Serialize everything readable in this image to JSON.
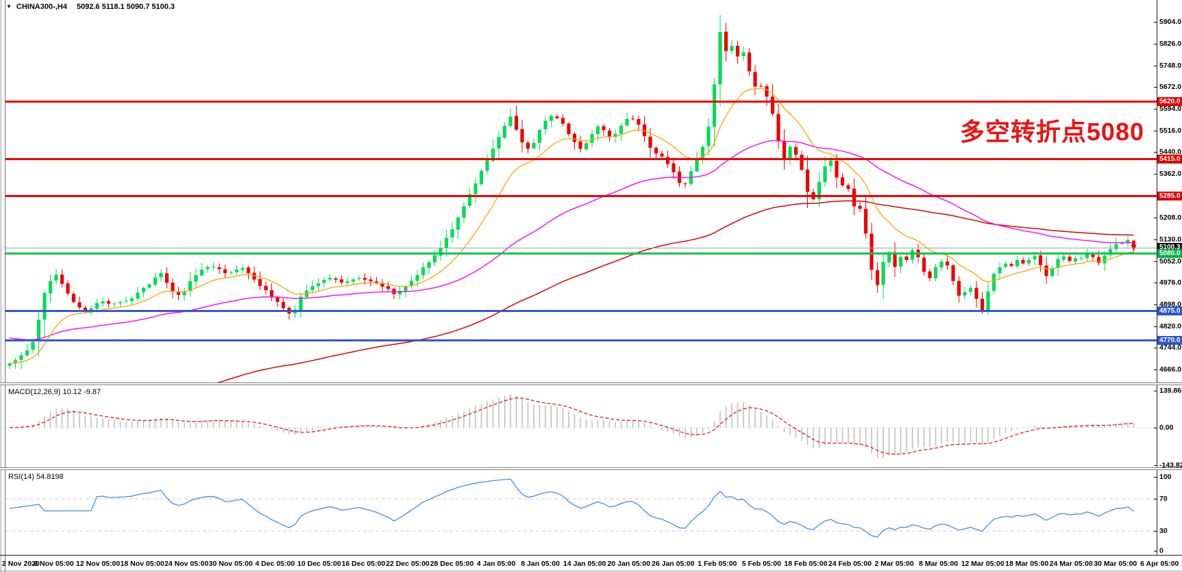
{
  "window": {
    "symbol": "CHINA300-,H4",
    "ohlc_text": "5092.6 5118.1 5090.7 5100.3",
    "dropdown_icon": "symbol-quick-nav"
  },
  "annotation": {
    "text": "多空转折点5080",
    "color": "#ee1111"
  },
  "price_axis": {
    "ticks": [
      "5904.0",
      "5826.0",
      "5748.0",
      "5672.0",
      "5594.0",
      "5516.0",
      "5440.0",
      "5362.0",
      "5208.0",
      "5130.0",
      "5052.0",
      "4976.0",
      "4898.0",
      "4820.0",
      "4744.0",
      "4666.0"
    ],
    "badges": [
      {
        "label": "5620.0",
        "price": 5620.0,
        "color": "#dd0000"
      },
      {
        "label": "5415.0",
        "price": 5415.0,
        "color": "#dd0000"
      },
      {
        "label": "5285.0",
        "price": 5285.0,
        "color": "#dd0000"
      },
      {
        "label": "5100.3",
        "price": 5100.3,
        "color": "#111111"
      },
      {
        "label": "5080.0",
        "price": 5080.0,
        "color": "#00b446"
      },
      {
        "label": "4875.0",
        "price": 4875.0,
        "color": "#2f55cc"
      },
      {
        "label": "4770.0",
        "price": 4770.0,
        "color": "#2f55cc"
      }
    ]
  },
  "indicators": {
    "macd": {
      "label": "MACD(12,26,9) 10.12 -9.87",
      "axis": [
        "139.86",
        "0.00",
        "-143.82"
      ]
    },
    "rsi": {
      "label": "RSI(14) 54.8198",
      "axis": [
        "100",
        "70",
        "30",
        "0"
      ]
    }
  },
  "chart_data": {
    "type": "candlestick",
    "symbol": "CHINA300-",
    "timeframe": "H4",
    "title": "CHINA300- H4 with MACD(12,26,9) and RSI(14)",
    "last_quote": {
      "open": 5092.6,
      "high": 5118.1,
      "low": 5090.7,
      "close": 5100.3
    },
    "y_ticks": [
      5904,
      5826,
      5748,
      5672,
      5594,
      5516,
      5440,
      5362,
      5208,
      5130,
      5052,
      4976,
      4898,
      4820,
      4744,
      4666
    ],
    "x_labels": [
      "2 Nov 2020",
      "6 Nov 05:00",
      "12 Nov 05:00",
      "18 Nov 05:00",
      "24 Nov 05:00",
      "30 Nov 05:00",
      "4 Dec 05:00",
      "10 Dec 05:00",
      "16 Dec 05:00",
      "22 Dec 05:00",
      "28 Dec 05:00",
      "4 Jan 05:00",
      "8 Jan 05:00",
      "14 Jan 05:00",
      "20 Jan 05:00",
      "26 Jan 05:00",
      "1 Feb 05:00",
      "5 Feb 05:00",
      "18 Feb 05:00",
      "24 Feb 05:00",
      "2 Mar 05:00",
      "8 Mar 05:00",
      "12 Mar 05:00",
      "18 Mar 05:00",
      "24 Mar 05:00",
      "30 Mar 05:00",
      "6 Apr 05:00"
    ],
    "horizontal_levels": [
      {
        "price": 5620.0,
        "color": "#f20000",
        "width": 3,
        "kind": "resistance"
      },
      {
        "price": 5415.0,
        "color": "#f20000",
        "width": 3,
        "kind": "resistance"
      },
      {
        "price": 5285.0,
        "color": "#f20000",
        "width": 3,
        "kind": "resistance"
      },
      {
        "price": 5080.0,
        "color": "#00c84b",
        "width": 3,
        "kind": "pivot"
      },
      {
        "price": 4875.0,
        "color": "#3558d0",
        "width": 3,
        "kind": "support"
      },
      {
        "price": 4770.0,
        "color": "#3558d0",
        "width": 3,
        "kind": "support"
      }
    ],
    "current_price_line": {
      "price": 5100.3,
      "color": "#9aa0a6"
    },
    "moving_averages": [
      {
        "name": "fast",
        "color": "#ffa200"
      },
      {
        "name": "medium",
        "color": "#ff00ff"
      },
      {
        "name": "slow",
        "color": "#dd0000"
      }
    ],
    "indicator_panels": [
      {
        "name": "MACD",
        "params": [
          12,
          26,
          9
        ],
        "values": [
          10.12,
          -9.87
        ],
        "axis_range": [
          139.86,
          -143.82
        ],
        "histogram_color": "#bbbbbb",
        "signal_color": "#e80000"
      },
      {
        "name": "RSI",
        "params": [
          14
        ],
        "value": 54.8198,
        "levels": [
          70,
          30
        ],
        "line_color": "#3e8ede"
      }
    ],
    "price_anchors": [
      [
        14,
        4686
      ],
      [
        22,
        4700
      ],
      [
        30,
        4712
      ],
      [
        40,
        4735
      ],
      [
        48,
        4768
      ],
      [
        58,
        4860
      ],
      [
        66,
        4948
      ],
      [
        74,
        4985
      ],
      [
        82,
        5004
      ],
      [
        90,
        4972
      ],
      [
        98,
        4940
      ],
      [
        106,
        4912
      ],
      [
        114,
        4888
      ],
      [
        122,
        4866
      ],
      [
        130,
        4882
      ],
      [
        138,
        4898
      ],
      [
        146,
        4906
      ],
      [
        155,
        4908
      ],
      [
        164,
        4898
      ],
      [
        172,
        4902
      ],
      [
        180,
        4908
      ],
      [
        188,
        4905
      ],
      [
        196,
        4925
      ],
      [
        205,
        4945
      ],
      [
        214,
        4962
      ],
      [
        222,
        4978
      ],
      [
        230,
        4998
      ],
      [
        236,
        5008
      ],
      [
        243,
        4975
      ],
      [
        250,
        4948
      ],
      [
        258,
        4935
      ],
      [
        265,
        4930
      ],
      [
        274,
        4962
      ],
      [
        282,
        4996
      ],
      [
        291,
        5012
      ],
      [
        300,
        5028
      ],
      [
        309,
        5034
      ],
      [
        318,
        5030
      ],
      [
        326,
        5016
      ],
      [
        335,
        5006
      ],
      [
        344,
        5018
      ],
      [
        352,
        5034
      ],
      [
        360,
        5015
      ],
      [
        368,
        4996
      ],
      [
        378,
        4970
      ],
      [
        388,
        4944
      ],
      [
        397,
        4922
      ],
      [
        406,
        4900
      ],
      [
        416,
        4880
      ],
      [
        426,
        4860
      ],
      [
        434,
        4898
      ],
      [
        442,
        4936
      ],
      [
        451,
        4952
      ],
      [
        460,
        4968
      ],
      [
        470,
        4980
      ],
      [
        480,
        4994
      ],
      [
        490,
        4984
      ],
      [
        500,
        4970
      ],
      [
        509,
        4982
      ],
      [
        518,
        4994
      ],
      [
        528,
        4987
      ],
      [
        538,
        4980
      ],
      [
        548,
        4971
      ],
      [
        558,
        4962
      ],
      [
        567,
        4950
      ],
      [
        576,
        4936
      ],
      [
        585,
        4952
      ],
      [
        594,
        4968
      ],
      [
        604,
        4992
      ],
      [
        614,
        5020
      ],
      [
        624,
        5044
      ],
      [
        634,
        5072
      ],
      [
        644,
        5104
      ],
      [
        654,
        5142
      ],
      [
        664,
        5184
      ],
      [
        674,
        5230
      ],
      [
        684,
        5278
      ],
      [
        694,
        5332
      ],
      [
        704,
        5378
      ],
      [
        714,
        5428
      ],
      [
        724,
        5474
      ],
      [
        733,
        5522
      ],
      [
        740,
        5550
      ],
      [
        746,
        5570
      ],
      [
        753,
        5525
      ],
      [
        760,
        5480
      ],
      [
        767,
        5458
      ],
      [
        774,
        5446
      ],
      [
        782,
        5490
      ],
      [
        790,
        5534
      ],
      [
        797,
        5552
      ],
      [
        804,
        5568
      ],
      [
        811,
        5560
      ],
      [
        818,
        5554
      ],
      [
        825,
        5524
      ],
      [
        832,
        5496
      ],
      [
        839,
        5470
      ],
      [
        846,
        5450
      ],
      [
        854,
        5470
      ],
      [
        862,
        5494
      ],
      [
        869,
        5516
      ],
      [
        876,
        5540
      ],
      [
        884,
        5510
      ],
      [
        892,
        5484
      ],
      [
        899,
        5508
      ],
      [
        906,
        5532
      ],
      [
        913,
        5550
      ],
      [
        919,
        5568
      ],
      [
        926,
        5552
      ],
      [
        933,
        5540
      ],
      [
        940,
        5498
      ],
      [
        948,
        5460
      ],
      [
        955,
        5442
      ],
      [
        963,
        5430
      ],
      [
        970,
        5410
      ],
      [
        978,
        5392
      ],
      [
        987,
        5348
      ],
      [
        996,
        5305
      ],
      [
        1004,
        5346
      ],
      [
        1012,
        5390
      ],
      [
        1019,
        5428
      ],
      [
        1026,
        5464
      ],
      [
        1032,
        5512
      ],
      [
        1038,
        5568
      ],
      [
        1044,
        5722
      ],
      [
        1050,
        5874
      ],
      [
        1058,
        5796
      ],
      [
        1066,
        5836
      ],
      [
        1074,
        5760
      ],
      [
        1082,
        5820
      ],
      [
        1090,
        5750
      ],
      [
        1098,
        5702
      ],
      [
        1106,
        5648
      ],
      [
        1114,
        5694
      ],
      [
        1122,
        5610
      ],
      [
        1130,
        5564
      ],
      [
        1138,
        5455
      ],
      [
        1146,
        5402
      ],
      [
        1154,
        5466
      ],
      [
        1162,
        5432
      ],
      [
        1170,
        5380
      ],
      [
        1178,
        5302
      ],
      [
        1186,
        5262
      ],
      [
        1194,
        5322
      ],
      [
        1202,
        5382
      ],
      [
        1210,
        5426
      ],
      [
        1218,
        5372
      ],
      [
        1226,
        5302
      ],
      [
        1234,
        5342
      ],
      [
        1242,
        5282
      ],
      [
        1250,
        5226
      ],
      [
        1258,
        5252
      ],
      [
        1266,
        5104
      ],
      [
        1274,
        4992
      ],
      [
        1282,
        4956
      ],
      [
        1290,
        5066
      ],
      [
        1298,
        5082
      ],
      [
        1306,
        5032
      ],
      [
        1314,
        5066
      ],
      [
        1322,
        5046
      ],
      [
        1330,
        5092
      ],
      [
        1338,
        5074
      ],
      [
        1346,
        5026
      ],
      [
        1354,
        4986
      ],
      [
        1362,
        5012
      ],
      [
        1370,
        5046
      ],
      [
        1378,
        5056
      ],
      [
        1386,
        5016
      ],
      [
        1394,
        4956
      ],
      [
        1402,
        4916
      ],
      [
        1410,
        4950
      ],
      [
        1418,
        4956
      ],
      [
        1426,
        4916
      ],
      [
        1434,
        4876
      ],
      [
        1442,
        4944
      ],
      [
        1449,
        4998
      ],
      [
        1457,
        5028
      ],
      [
        1465,
        5048
      ],
      [
        1472,
        5022
      ],
      [
        1480,
        5042
      ],
      [
        1488,
        5058
      ],
      [
        1495,
        5032
      ],
      [
        1503,
        5062
      ],
      [
        1511,
        5076
      ],
      [
        1518,
        5042
      ],
      [
        1526,
        4996
      ],
      [
        1534,
        5016
      ],
      [
        1541,
        5052
      ],
      [
        1549,
        5082
      ],
      [
        1557,
        5062
      ],
      [
        1564,
        5042
      ],
      [
        1572,
        5068
      ],
      [
        1580,
        5056
      ],
      [
        1587,
        5082
      ],
      [
        1595,
        5062
      ],
      [
        1603,
        5044
      ],
      [
        1610,
        5062
      ],
      [
        1618,
        5088
      ],
      [
        1626,
        5108
      ],
      [
        1633,
        5128
      ],
      [
        1641,
        5106
      ],
      [
        1649,
        5146
      ],
      [
        1656,
        5100.3
      ]
    ],
    "candle_up_color": "#00dd55",
    "candle_down_color": "#ee0000"
  }
}
